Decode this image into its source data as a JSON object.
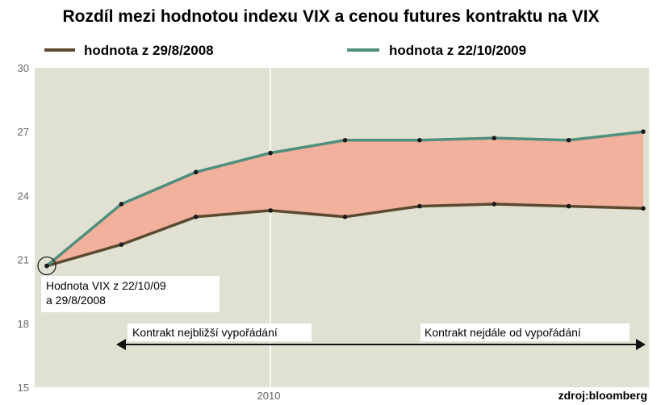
{
  "chart_data": {
    "type": "area",
    "title": "Rozdíl mezi hodnotou indexu VIX a cenou futures kontraktu na VIX",
    "x_tick_label": "2010",
    "ylim": [
      15,
      30
    ],
    "y_ticks": [
      30,
      27,
      24,
      21,
      18,
      15
    ],
    "grid": "vertical",
    "legend_position": "top",
    "series": [
      {
        "name": "hodnota z 29/8/2008",
        "color": "#5b4a30",
        "values": [
          20.7,
          21.7,
          23.0,
          23.3,
          23.0,
          23.5,
          23.6,
          23.5,
          23.4
        ]
      },
      {
        "name": "hodnota z 22/10/2009",
        "color": "#4f8f7c",
        "values": [
          20.7,
          23.6,
          25.1,
          26.0,
          26.6,
          26.6,
          26.7,
          26.6,
          27.0
        ]
      }
    ],
    "fill_between_color": "#f1b19d",
    "annotations": {
      "start_label_line1": "Hodnota VIX z 22/10/09",
      "start_label_line2": "a 29/8/2008",
      "arrow_left_label": "Kontrakt nejbližší vypořádání",
      "arrow_right_label": "Kontrakt nejdále od vypořádání",
      "source": "zdroj:bloomberg"
    }
  }
}
